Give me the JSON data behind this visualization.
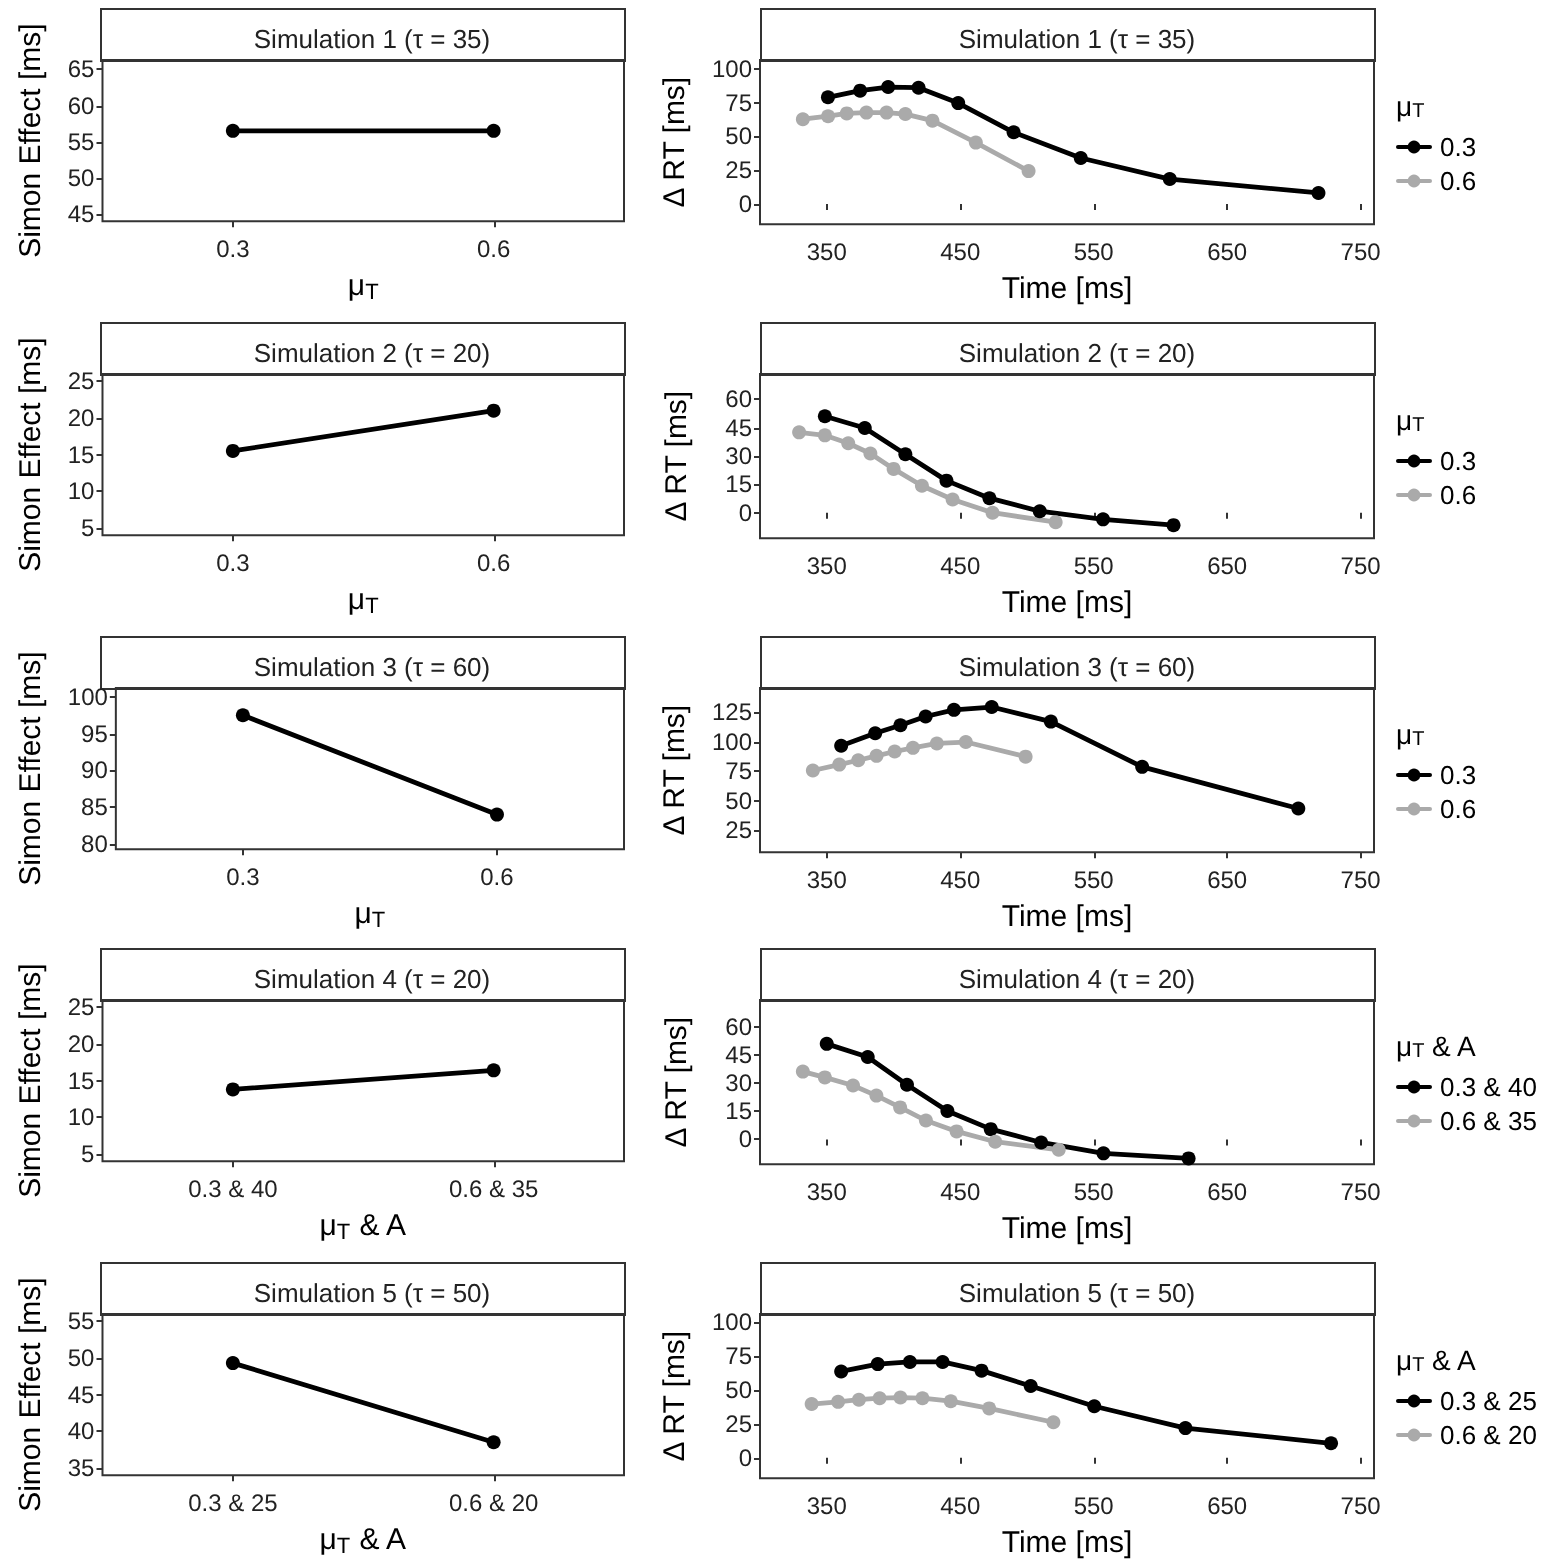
{
  "chart_data": [
    {
      "type": "line",
      "title": "Simulation 1 (τ = 35)",
      "xlabel": "μ$_{T}$",
      "ylabel": "Simon Effect [ms]",
      "categories": [
        "0.3",
        "0.6"
      ],
      "values": [
        56.5,
        56.5
      ],
      "color": "#000000",
      "ylim": [
        44,
        66.3
      ],
      "yticks": [
        45,
        50,
        55,
        60,
        65
      ],
      "marker": "circle",
      "line_style": "solid"
    },
    {
      "type": "line",
      "title": "Simulation 1 (τ = 35)",
      "xlabel": "Time [ms]",
      "ylabel": "Δ RT [ms]",
      "legend_title": "μ$_{T}$",
      "legend": "right",
      "xlim": [
        300,
        760
      ],
      "xticks": [
        350,
        450,
        550,
        650,
        750
      ],
      "ylim": [
        -15,
        106.5
      ],
      "yticks": [
        0,
        25,
        50,
        75,
        100
      ],
      "marker": "circle",
      "line_style": "solid",
      "series": [
        {
          "name": "0.3",
          "color": "#000000",
          "x": [
            350.9,
            375,
            396,
            418.8,
            448.5,
            490,
            540.3,
            607,
            718.4
          ],
          "values": [
            78.9,
            83.8,
            86.5,
            86,
            74.6,
            53,
            34,
            18.4,
            8.1
          ]
        },
        {
          "name": "0.6",
          "color": "#aaaaaa",
          "x": [
            332.1,
            351,
            365,
            379.7,
            394.8,
            408.9,
            429.2,
            461.7,
            501.2
          ],
          "values": [
            62.7,
            64.9,
            67,
            67.6,
            67.6,
            66.5,
            61.6,
            45.4,
            24.3
          ]
        }
      ]
    },
    {
      "type": "line",
      "title": "Simulation 2 (τ = 20)",
      "xlabel": "μ$_{T}$",
      "ylabel": "Simon Effect [ms]",
      "categories": [
        "0.3",
        "0.6"
      ],
      "values": [
        15.5,
        21
      ],
      "color": "#000000",
      "ylim": [
        4,
        26
      ],
      "yticks": [
        5,
        10,
        15,
        20,
        25
      ],
      "marker": "circle",
      "line_style": "solid"
    },
    {
      "type": "line",
      "title": "Simulation 2 (τ = 20)",
      "xlabel": "Time [ms]",
      "ylabel": "Δ RT [ms]",
      "legend_title": "μ$_{T}$",
      "legend": "right",
      "xlim": [
        300,
        760
      ],
      "xticks": [
        350,
        450,
        550,
        650,
        750
      ],
      "ylim": [
        -13.5,
        73.5
      ],
      "yticks": [
        0,
        15,
        30,
        45,
        60
      ],
      "marker": "circle",
      "line_style": "solid",
      "series": [
        {
          "name": "0.3",
          "color": "#000000",
          "x": [
            348.6,
            378.5,
            408.9,
            439.7,
            471.9,
            509.6,
            557,
            609.8
          ],
          "values": [
            51.1,
            44.9,
            31,
            17,
            7.7,
            0.8,
            -3.5,
            -6.6
          ]
        },
        {
          "name": "0.6",
          "color": "#aaaaaa",
          "x": [
            329.3,
            348.6,
            366.1,
            382.7,
            400.1,
            421.3,
            444.3,
            474.2,
            521.5
          ],
          "values": [
            42.6,
            41,
            36.8,
            31.4,
            23.2,
            14.3,
            7,
            0,
            -5
          ]
        }
      ]
    },
    {
      "type": "line",
      "title": "Simulation 3 (τ = 60)",
      "xlabel": "μ$_{T}$",
      "ylabel": "Simon Effect [ms]",
      "categories": [
        "0.3",
        "0.6"
      ],
      "values": [
        97.5,
        84
      ],
      "color": "#000000",
      "ylim": [
        79.3,
        101.2
      ],
      "yticks": [
        80,
        85,
        90,
        95,
        100
      ],
      "marker": "circle",
      "line_style": "solid"
    },
    {
      "type": "line",
      "title": "Simulation 3 (τ = 60)",
      "xlabel": "Time [ms]",
      "ylabel": "Δ RT [ms]",
      "legend_title": "μ$_{T}$",
      "legend": "right",
      "xlim": [
        300,
        760
      ],
      "xticks": [
        350,
        450,
        550,
        650,
        750
      ],
      "ylim": [
        6.5,
        145.4
      ],
      "yticks": [
        25,
        50,
        75,
        100,
        125
      ],
      "marker": "circle",
      "line_style": "solid",
      "series": [
        {
          "name": "0.3",
          "color": "#000000",
          "x": [
            360.8,
            386.3,
            405.2,
            424.1,
            445.3,
            473.6,
            517.9,
            586.3,
            703.3
          ],
          "values": [
            96.6,
            107.1,
            113.9,
            121.3,
            126.9,
            129.3,
            117,
            78.7,
            43.5
          ]
        },
        {
          "name": "0.6",
          "color": "#aaaaaa",
          "x": [
            339.6,
            359.4,
            373.6,
            387.3,
            400.9,
            414.6,
            432.5,
            454.2,
            499
          ],
          "values": [
            75.6,
            80.6,
            84.3,
            88,
            91.7,
            94.8,
            98.5,
            99.7,
            87.3
          ]
        }
      ]
    },
    {
      "type": "line",
      "title": "Simulation 4 (τ = 20)",
      "xlabel": "μ$_{T}$ & A",
      "ylabel": "Simon Effect [ms]",
      "categories": [
        "0.3 & 40",
        "0.6 & 35"
      ],
      "values": [
        13.8,
        16.4
      ],
      "color": "#000000",
      "ylim": [
        4,
        26
      ],
      "yticks": [
        5,
        10,
        15,
        20,
        25
      ],
      "marker": "circle",
      "line_style": "solid"
    },
    {
      "type": "line",
      "title": "Simulation 4 (τ = 20)",
      "xlabel": "Time [ms]",
      "ylabel": "Δ RT [ms]",
      "legend_title": "μ$_{T}$ & A",
      "legend": "right",
      "xlim": [
        300,
        760
      ],
      "xticks": [
        350,
        450,
        550,
        650,
        750
      ],
      "ylim": [
        -13.2,
        74.4
      ],
      "yticks": [
        0,
        15,
        30,
        45,
        60
      ],
      "marker": "circle",
      "line_style": "solid",
      "series": [
        {
          "name": "0.3 & 40",
          "color": "#000000",
          "x": [
            350,
            380.7,
            410.1,
            440.4,
            472.9,
            510.6,
            557.3,
            621.1
          ],
          "values": [
            51,
            44,
            29.2,
            15.2,
            5.5,
            -1.6,
            -7.4,
            -10.1
          ]
        },
        {
          "name": "0.6 & 35",
          "color": "#aaaaaa",
          "x": [
            332.1,
            348.6,
            369.7,
            387.2,
            405,
            424.3,
            447.3,
            476.2,
            523.8
          ],
          "values": [
            36.2,
            33.1,
            28.8,
            23.4,
            17.1,
            10.1,
            4.3,
            -1.2,
            -5.5
          ]
        }
      ]
    },
    {
      "type": "line",
      "title": "Simulation 5 (τ = 50)",
      "xlabel": "μ$_{T}$ & A",
      "ylabel": "Simon Effect [ms]",
      "categories": [
        "0.3 & 25",
        "0.6 & 20"
      ],
      "values": [
        49.3,
        38.5
      ],
      "color": "#000000",
      "ylim": [
        34,
        56
      ],
      "yticks": [
        35,
        40,
        45,
        50,
        55
      ],
      "marker": "circle",
      "line_style": "solid"
    },
    {
      "type": "line",
      "title": "Simulation 5 (τ = 50)",
      "xlabel": "Time [ms]",
      "ylabel": "Δ RT [ms]",
      "legend_title": "μ$_{T}$ & A",
      "legend": "right",
      "xlim": [
        300,
        760
      ],
      "xticks": [
        350,
        450,
        550,
        650,
        750
      ],
      "ylim": [
        -15,
        105.9
      ],
      "yticks": [
        0,
        25,
        50,
        75,
        100
      ],
      "marker": "circle",
      "line_style": "solid",
      "series": [
        {
          "name": "0.3 & 25",
          "color": "#000000",
          "x": [
            360.8,
            388.2,
            412.3,
            436.8,
            466,
            502.8,
            550.4,
            618.7,
            727.8
          ],
          "values": [
            63.6,
            69,
            70.6,
            70.6,
            64.2,
            52.9,
            38,
            21.9,
            10.7
          ]
        },
        {
          "name": "0.6 & 20",
          "color": "#aaaaaa",
          "x": [
            338.7,
            358.5,
            374.1,
            389.6,
            405.2,
            421.7,
            442.9,
            471.7,
            519.8
          ],
          "values": [
            39.6,
            41.2,
            42.8,
            43.9,
            44.4,
            43.9,
            41.7,
            36.4,
            26.2
          ]
        }
      ]
    }
  ]
}
